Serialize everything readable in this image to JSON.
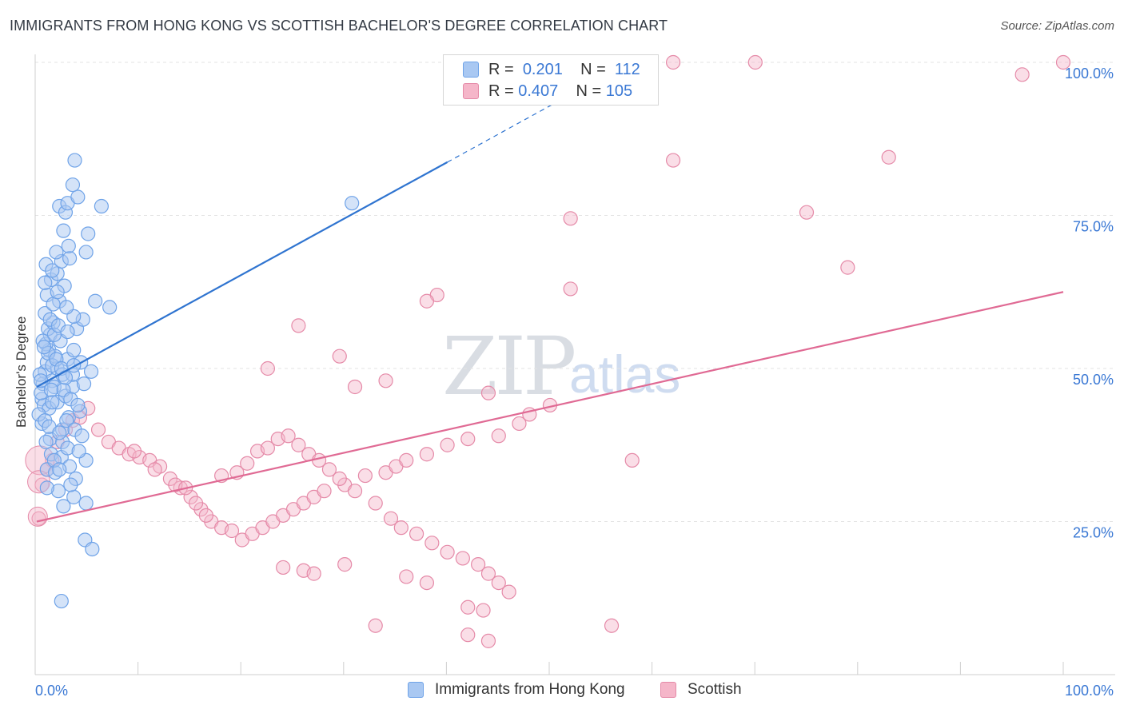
{
  "title": "IMMIGRANTS FROM HONG KONG VS SCOTTISH BACHELOR'S DEGREE CORRELATION CHART",
  "source": "Source: ZipAtlas.com",
  "watermark": {
    "zip": "ZIP",
    "atlas": "atlas"
  },
  "legend": {
    "rows": [
      {
        "r_label": "R =",
        "r_value": "0.201",
        "n_label": "N =",
        "n_value": "112",
        "color": "#a9c8f2"
      },
      {
        "r_label": "R =",
        "r_value": "0.407",
        "n_label": "N =",
        "n_value": "105",
        "color": "#f5b6c9"
      }
    ]
  },
  "bottom_legend": [
    {
      "label": "Immigrants from Hong Kong",
      "color": "#a9c8f2"
    },
    {
      "label": "Scottish",
      "color": "#f5b6c9"
    }
  ],
  "chart_data": {
    "type": "scatter",
    "title": "IMMIGRANTS FROM HONG KONG VS SCOTTISH BACHELOR'S DEGREE CORRELATION CHART",
    "xlabel": "",
    "ylabel": "Bachelor's Degree",
    "xlim": [
      0,
      100
    ],
    "ylim": [
      0,
      100
    ],
    "x_tick_labels": [
      "0.0%",
      "100.0%"
    ],
    "y_tick_labels": [
      "25.0%",
      "50.0%",
      "75.0%",
      "100.0%"
    ],
    "y_ticks": [
      25,
      50,
      75,
      100
    ],
    "grid": true,
    "colors": {
      "hk": "#6fa3e8",
      "hk_fill": "#a9c8f2",
      "hk_line": "#2f74d0",
      "sc": "#e58aa8",
      "sc_fill": "#f5b6c9",
      "sc_line": "#e06a94",
      "tick_text": "#3a78d4"
    },
    "series": [
      {
        "name": "Immigrants from Hong Kong",
        "R": 0.201,
        "N": 112,
        "trend": {
          "x0": 0,
          "y0": 47.0,
          "x1": 40,
          "y1": 83.7,
          "dash_to_x": 55,
          "dash_to_y": 97.5
        },
        "points": [
          [
            0.6,
            47.5
          ],
          [
            0.8,
            49.5
          ],
          [
            1.0,
            51.0
          ],
          [
            1.2,
            53.0
          ],
          [
            0.5,
            45.0
          ],
          [
            1.5,
            48.0
          ],
          [
            0.9,
            54.0
          ],
          [
            1.3,
            55.5
          ],
          [
            0.7,
            44.0
          ],
          [
            2.0,
            50.0
          ],
          [
            1.8,
            52.0
          ],
          [
            2.5,
            49.0
          ],
          [
            3.0,
            51.5
          ],
          [
            0.4,
            46.0
          ],
          [
            1.1,
            56.5
          ],
          [
            1.6,
            57.5
          ],
          [
            0.8,
            59.0
          ],
          [
            2.2,
            61.0
          ],
          [
            1.0,
            62.0
          ],
          [
            2.7,
            63.5
          ],
          [
            1.4,
            64.5
          ],
          [
            2.0,
            65.5
          ],
          [
            0.9,
            67.0
          ],
          [
            2.4,
            67.5
          ],
          [
            3.2,
            68.0
          ],
          [
            1.9,
            69.0
          ],
          [
            4.8,
            69.0
          ],
          [
            5.0,
            72.0
          ],
          [
            2.2,
            76.5
          ],
          [
            2.8,
            75.5
          ],
          [
            3.0,
            77.0
          ],
          [
            4.0,
            78.0
          ],
          [
            3.5,
            80.0
          ],
          [
            3.7,
            84.0
          ],
          [
            6.3,
            76.5
          ],
          [
            1.3,
            38.5
          ],
          [
            2.5,
            40.0
          ],
          [
            3.1,
            42.0
          ],
          [
            4.2,
            43.0
          ],
          [
            0.5,
            41.0
          ],
          [
            1.2,
            43.5
          ],
          [
            2.0,
            44.5
          ],
          [
            2.8,
            45.5
          ],
          [
            3.5,
            47.0
          ],
          [
            4.6,
            47.5
          ],
          [
            5.3,
            49.5
          ],
          [
            4.3,
            51.0
          ],
          [
            3.6,
            53.0
          ],
          [
            2.3,
            54.5
          ],
          [
            1.7,
            55.5
          ],
          [
            3.9,
            56.5
          ],
          [
            4.5,
            58.0
          ],
          [
            3.6,
            58.5
          ],
          [
            2.9,
            60.0
          ],
          [
            1.6,
            60.5
          ],
          [
            5.7,
            61.0
          ],
          [
            7.1,
            60.0
          ],
          [
            0.9,
            38.0
          ],
          [
            1.4,
            36.0
          ],
          [
            2.4,
            35.5
          ],
          [
            3.2,
            34.0
          ],
          [
            4.8,
            35.0
          ],
          [
            1.0,
            33.5
          ],
          [
            1.8,
            33.0
          ],
          [
            3.8,
            32.0
          ],
          [
            2.1,
            30.0
          ],
          [
            3.6,
            29.0
          ],
          [
            4.8,
            28.0
          ],
          [
            2.6,
            27.5
          ],
          [
            4.7,
            22.0
          ],
          [
            5.4,
            20.5
          ],
          [
            2.4,
            12.0
          ],
          [
            0.6,
            54.5
          ],
          [
            1.1,
            52.5
          ],
          [
            1.5,
            50.5
          ],
          [
            0.3,
            49.0
          ],
          [
            1.7,
            47.0
          ],
          [
            2.6,
            46.5
          ],
          [
            3.3,
            45.0
          ],
          [
            4.0,
            44.0
          ],
          [
            0.2,
            42.5
          ],
          [
            2.9,
            41.5
          ],
          [
            3.7,
            40.0
          ],
          [
            4.4,
            39.0
          ],
          [
            1.3,
            58.0
          ],
          [
            2.1,
            57.0
          ],
          [
            3.0,
            56.0
          ],
          [
            0.7,
            53.5
          ],
          [
            1.9,
            51.5
          ],
          [
            2.4,
            50.0
          ],
          [
            3.5,
            49.0
          ],
          [
            0.4,
            48.0
          ],
          [
            2.8,
            48.5
          ],
          [
            1.5,
            44.5
          ],
          [
            0.8,
            41.5
          ],
          [
            1.2,
            40.5
          ],
          [
            2.5,
            38.0
          ],
          [
            3.0,
            37.0
          ],
          [
            1.7,
            35.0
          ],
          [
            4.1,
            36.5
          ],
          [
            2.2,
            33.5
          ],
          [
            3.3,
            31.0
          ],
          [
            1.0,
            30.5
          ],
          [
            2.0,
            62.5
          ],
          [
            1.5,
            66.0
          ],
          [
            0.8,
            64.0
          ],
          [
            3.1,
            70.0
          ],
          [
            2.6,
            72.5
          ],
          [
            30.7,
            77.0
          ],
          [
            2.2,
            39.5
          ],
          [
            1.4,
            46.5
          ],
          [
            3.6,
            50.5
          ]
        ]
      },
      {
        "name": "Scottish",
        "R": 0.407,
        "N": 105,
        "trend": {
          "x0": 0,
          "y0": 25.0,
          "x1": 100,
          "y1": 62.5
        },
        "points": [
          [
            0.2,
            25.5
          ],
          [
            0.5,
            31.0
          ],
          [
            1.0,
            33.5
          ],
          [
            1.5,
            35.0
          ],
          [
            2.0,
            38.0
          ],
          [
            2.8,
            40.0
          ],
          [
            3.5,
            41.5
          ],
          [
            4.2,
            42.0
          ],
          [
            5.0,
            43.5
          ],
          [
            6.0,
            40.0
          ],
          [
            7.0,
            38.0
          ],
          [
            8.0,
            37.0
          ],
          [
            9.0,
            36.0
          ],
          [
            10.0,
            35.5
          ],
          [
            11.0,
            35.0
          ],
          [
            12.0,
            34.0
          ],
          [
            13.0,
            32.0
          ],
          [
            14.0,
            30.5
          ],
          [
            15.0,
            29.0
          ],
          [
            16.0,
            27.0
          ],
          [
            17.0,
            25.0
          ],
          [
            18.0,
            24.0
          ],
          [
            9.5,
            36.5
          ],
          [
            11.5,
            33.5
          ],
          [
            13.5,
            31.0
          ],
          [
            14.5,
            30.5
          ],
          [
            15.5,
            28.0
          ],
          [
            16.5,
            26.0
          ],
          [
            19.0,
            23.5
          ],
          [
            20.0,
            22.0
          ],
          [
            21.0,
            23.0
          ],
          [
            22.0,
            24.0
          ],
          [
            23.0,
            25.0
          ],
          [
            24.0,
            26.0
          ],
          [
            25.0,
            27.0
          ],
          [
            26.0,
            28.0
          ],
          [
            27.0,
            29.0
          ],
          [
            28.0,
            30.0
          ],
          [
            30.0,
            31.0
          ],
          [
            32.0,
            32.5
          ],
          [
            34.0,
            33.0
          ],
          [
            35.0,
            34.0
          ],
          [
            36.0,
            35.0
          ],
          [
            38.0,
            36.0
          ],
          [
            40.0,
            37.5
          ],
          [
            42.0,
            38.5
          ],
          [
            45.0,
            39.0
          ],
          [
            47.0,
            41.0
          ],
          [
            48.0,
            42.5
          ],
          [
            50.0,
            44.0
          ],
          [
            18.0,
            32.5
          ],
          [
            19.5,
            33.0
          ],
          [
            20.5,
            34.5
          ],
          [
            21.5,
            36.5
          ],
          [
            22.5,
            37.0
          ],
          [
            23.5,
            38.5
          ],
          [
            24.5,
            39.0
          ],
          [
            25.5,
            37.5
          ],
          [
            26.5,
            36.0
          ],
          [
            27.5,
            35.0
          ],
          [
            28.5,
            33.5
          ],
          [
            29.5,
            32.0
          ],
          [
            31.0,
            30.0
          ],
          [
            33.0,
            28.0
          ],
          [
            34.5,
            25.5
          ],
          [
            35.5,
            24.0
          ],
          [
            37.0,
            23.0
          ],
          [
            38.5,
            21.5
          ],
          [
            40.0,
            20.0
          ],
          [
            41.5,
            19.0
          ],
          [
            43.0,
            18.0
          ],
          [
            44.0,
            16.5
          ],
          [
            45.0,
            15.0
          ],
          [
            46.0,
            13.5
          ],
          [
            24.0,
            17.5
          ],
          [
            26.0,
            17.0
          ],
          [
            27.0,
            16.5
          ],
          [
            30.0,
            18.0
          ],
          [
            36.0,
            16.0
          ],
          [
            38.0,
            15.0
          ],
          [
            42.0,
            11.0
          ],
          [
            43.5,
            10.5
          ],
          [
            33.0,
            8.0
          ],
          [
            42.0,
            6.5
          ],
          [
            44.0,
            5.5
          ],
          [
            56.0,
            8.0
          ],
          [
            62.0,
            84.0
          ],
          [
            75.0,
            75.5
          ],
          [
            79.0,
            66.5
          ],
          [
            83.0,
            84.5
          ],
          [
            96.0,
            98.0
          ],
          [
            62.0,
            100.0
          ],
          [
            70.0,
            100.0
          ],
          [
            100.0,
            100.0
          ],
          [
            52.0,
            74.5
          ],
          [
            52.0,
            63.0
          ],
          [
            39.0,
            62.0
          ],
          [
            38.0,
            61.0
          ],
          [
            25.5,
            57.0
          ],
          [
            29.5,
            52.0
          ],
          [
            22.5,
            50.0
          ],
          [
            34.0,
            48.0
          ],
          [
            31.0,
            47.0
          ],
          [
            44.0,
            46.0
          ],
          [
            58.0,
            35.0
          ]
        ]
      }
    ]
  }
}
